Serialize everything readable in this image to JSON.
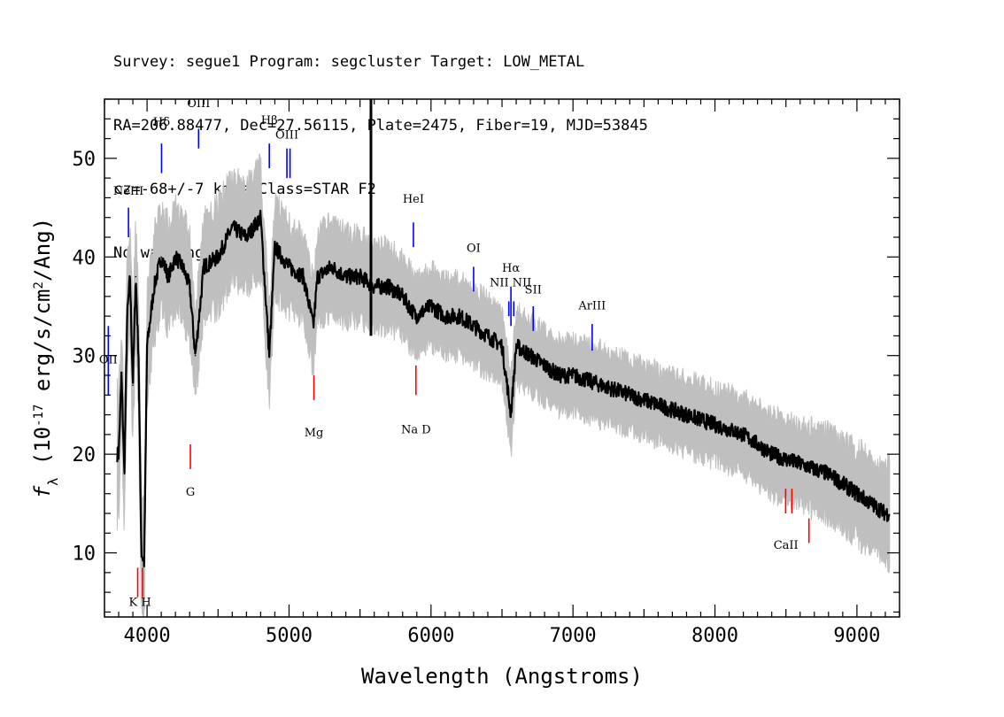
{
  "header": {
    "line1": "Survey: segue1 Program: segcluster Target: LOW_METAL",
    "line2": "RA=206.88477, Dec=27.56115, Plate=2475, Fiber=19, MJD=53845",
    "line3": "cz=-68+/-7 km/s Class=STAR F2",
    "line4": "No warnings."
  },
  "chart_data": {
    "type": "line",
    "xlabel": "Wavelength (Angstroms)",
    "ylabel": "f_λ (10^-17 erg/s/cm^2/Ang)",
    "xlim": [
      3700,
      9300
    ],
    "ylim": [
      3.5,
      56
    ],
    "xticks": [
      "4000",
      "5000",
      "6000",
      "7000",
      "8000",
      "9000"
    ],
    "yticks": [
      "10",
      "20",
      "30",
      "40",
      "50"
    ],
    "grid": false,
    "series": [
      {
        "color": "#000000",
        "x": [
          3800,
          3820,
          3840,
          3860,
          3880,
          3900,
          3920,
          3940,
          3960,
          3980,
          4000,
          4050,
          4100,
          4150,
          4200,
          4250,
          4300,
          4340,
          4400,
          4500,
          4600,
          4700,
          4800,
          4861,
          4900,
          5000,
          5100,
          5172,
          5200,
          5300,
          5400,
          5500,
          5600,
          5700,
          5800,
          5893,
          6000,
          6100,
          6200,
          6300,
          6400,
          6500,
          6563,
          6600,
          6700,
          6800,
          6900,
          7000,
          7200,
          7400,
          7600,
          7800,
          8000,
          8200,
          8400,
          8600,
          8800,
          9000,
          9100,
          9200
        ],
        "values": [
          20,
          28,
          18,
          34,
          38,
          27,
          38,
          30,
          10,
          9,
          31,
          37,
          40,
          38,
          40,
          39,
          37,
          30,
          39,
          40,
          43,
          42,
          44,
          30,
          41,
          39,
          38,
          33,
          38,
          39,
          38,
          38,
          37,
          37,
          36,
          34,
          35,
          34,
          34,
          33,
          32,
          31,
          24,
          31,
          30,
          29,
          28,
          28,
          27,
          26,
          25,
          24,
          23,
          22,
          20,
          19,
          18,
          16,
          15,
          14
        ]
      },
      {
        "color": "#bfbfbf",
        "note": "uncertainty band",
        "x": [
          3800,
          3900,
          4000,
          4200,
          4400,
          4600,
          4800,
          5000,
          5200,
          5400,
          5600,
          5800,
          6000,
          6200,
          6400,
          6600,
          6800,
          7000,
          7400,
          7800,
          8200,
          8600,
          9000,
          9200
        ],
        "values": [
          3.5,
          3.5,
          3,
          3,
          3,
          3,
          3,
          2.6,
          2.6,
          2.6,
          2.4,
          2.4,
          2.2,
          2.2,
          2.2,
          2.2,
          2.1,
          2.1,
          2.1,
          2.1,
          2.2,
          2.4,
          2.6,
          2.8
        ]
      }
    ],
    "annotations": [
      {
        "label": "OII",
        "wavelength": 3727,
        "color": "#0000ff",
        "side": "up"
      },
      {
        "label": "NeIII",
        "wavelength": 3869,
        "color": "#0000ff",
        "side": "up"
      },
      {
        "label": "Hδ",
        "wavelength": 4102,
        "color": "#0000ff",
        "side": "up"
      },
      {
        "label": "OIII",
        "wavelength": 4363,
        "color": "#0000ff",
        "side": "up"
      },
      {
        "label": "Hβ",
        "wavelength": 4861,
        "color": "#0000ff",
        "side": "up"
      },
      {
        "label": "OIII",
        "wavelength": 4985,
        "color": "#0000ff",
        "side": "up"
      },
      {
        "label": "HeI",
        "wavelength": 5876,
        "color": "#0000ff",
        "side": "up"
      },
      {
        "label": "OI",
        "wavelength": 6300,
        "color": "#0000ff",
        "side": "up"
      },
      {
        "label": "NII",
        "wavelength": 6548,
        "color": "#0000ff",
        "side": "up"
      },
      {
        "label": "Hα",
        "wavelength": 6563,
        "color": "#0000ff",
        "side": "up"
      },
      {
        "label": "NII",
        "wavelength": 6583,
        "color": "#0000ff",
        "side": "up"
      },
      {
        "label": "SII",
        "wavelength": 6720,
        "color": "#0000ff",
        "side": "up"
      },
      {
        "label": "ArIII",
        "wavelength": 7135,
        "color": "#0000ff",
        "side": "up"
      },
      {
        "label": "K H",
        "wavelength": 3950,
        "color": "#ff0000",
        "side": "down"
      },
      {
        "label": "G",
        "wavelength": 4305,
        "color": "#ff0000",
        "side": "down"
      },
      {
        "label": "Mg",
        "wavelength": 5175,
        "color": "#ff0000",
        "side": "down"
      },
      {
        "label": "Na D",
        "wavelength": 5894,
        "color": "#ff0000",
        "side": "down"
      },
      {
        "label": "CaII",
        "wavelength": 8542,
        "color": "#ff0000",
        "side": "down"
      }
    ]
  }
}
